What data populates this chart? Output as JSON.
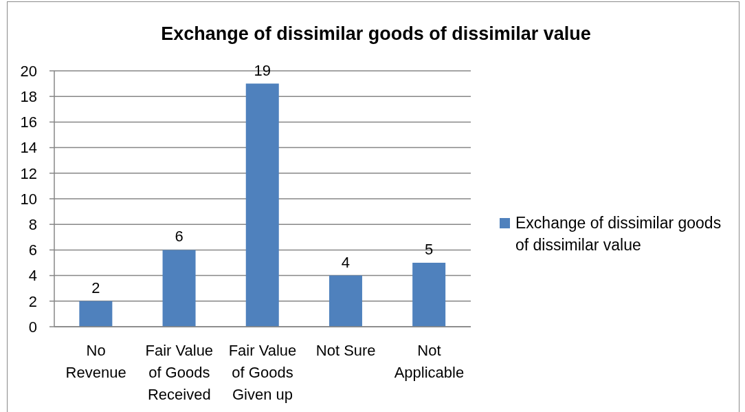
{
  "chart_data": {
    "type": "bar",
    "title": "Exchange of dissimilar goods of dissimilar value",
    "categories": [
      "No Revenue",
      "Fair Value of Goods Received",
      "Fair Value of Goods Given up",
      "Not Sure",
      "Not Applicable"
    ],
    "series": [
      {
        "name": "Exchange of dissimilar goods of dissimilar value",
        "color": "#4f81bd",
        "values": [
          2,
          6,
          19,
          4,
          5
        ]
      }
    ],
    "ylim": [
      0,
      20
    ],
    "yticks": [
      0,
      2,
      4,
      6,
      8,
      10,
      12,
      14,
      16,
      18,
      20
    ],
    "grid": "y",
    "legend": "right",
    "data_labels": true
  }
}
